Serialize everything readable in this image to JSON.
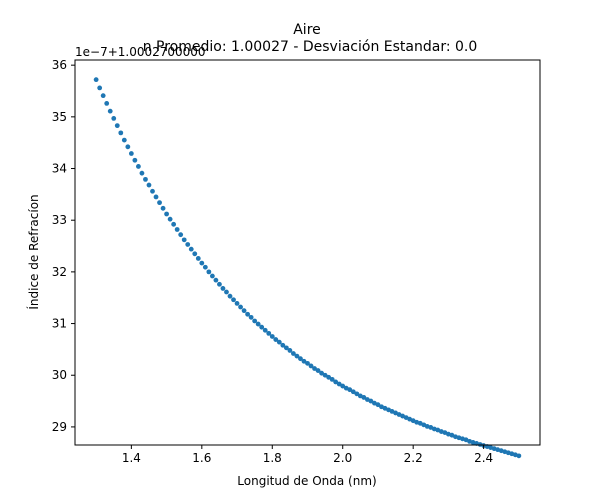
{
  "chart_data": {
    "type": "scatter",
    "title": "Aire",
    "subtitle": "n Promedio: 1.00027 - Desviación Estandar: 0.0",
    "xlabel": "Longitud de Onda (nm)",
    "ylabel": "Índice de Refracíon",
    "offset_label": "1e−7+1.0002700000",
    "xlim": [
      1.24,
      2.56
    ],
    "ylim": [
      28.65,
      36.1
    ],
    "xticks": [
      1.4,
      1.6,
      1.8,
      2.0,
      2.2,
      2.4
    ],
    "xtick_labels": [
      "1.4",
      "1.6",
      "1.8",
      "2.0",
      "2.2",
      "2.4"
    ],
    "yticks": [
      29,
      30,
      31,
      32,
      33,
      34,
      35,
      36
    ],
    "ytick_labels": [
      "29",
      "30",
      "31",
      "32",
      "33",
      "34",
      "35",
      "36"
    ],
    "grid": false,
    "marker_color": "#1f77b4",
    "series": [
      {
        "x": [
          1.3,
          1.31,
          1.32,
          1.33,
          1.34,
          1.35,
          1.36,
          1.37,
          1.38,
          1.39,
          1.4,
          1.41,
          1.42,
          1.43,
          1.44,
          1.45,
          1.46,
          1.47,
          1.48,
          1.49,
          1.5,
          1.51,
          1.52,
          1.53,
          1.54,
          1.55,
          1.56,
          1.57,
          1.58,
          1.59,
          1.6,
          1.61,
          1.62,
          1.63,
          1.64,
          1.65,
          1.66,
          1.67,
          1.68,
          1.69,
          1.7,
          1.71,
          1.72,
          1.73,
          1.74,
          1.75,
          1.76,
          1.77,
          1.78,
          1.79,
          1.8,
          1.81,
          1.82,
          1.83,
          1.84,
          1.85,
          1.86,
          1.87,
          1.88,
          1.89,
          1.9,
          1.91,
          1.92,
          1.93,
          1.94,
          1.95,
          1.96,
          1.97,
          1.98,
          1.99,
          2.0,
          2.01,
          2.02,
          2.03,
          2.04,
          2.05,
          2.06,
          2.07,
          2.08,
          2.09,
          2.1,
          2.11,
          2.12,
          2.13,
          2.14,
          2.15,
          2.16,
          2.17,
          2.18,
          2.19,
          2.2,
          2.21,
          2.22,
          2.23,
          2.24,
          2.25,
          2.26,
          2.27,
          2.28,
          2.29,
          2.3,
          2.31,
          2.32,
          2.33,
          2.34,
          2.35,
          2.36,
          2.37,
          2.38,
          2.39,
          2.4,
          2.41,
          2.42,
          2.43,
          2.44,
          2.45,
          2.46,
          2.47,
          2.48,
          2.49,
          2.5
        ],
        "y": [
          35.72,
          35.56,
          35.41,
          35.26,
          35.11,
          34.97,
          34.83,
          34.69,
          34.55,
          34.42,
          34.29,
          34.16,
          34.04,
          33.91,
          33.79,
          33.68,
          33.56,
          33.45,
          33.34,
          33.23,
          33.12,
          33.02,
          32.92,
          32.82,
          32.72,
          32.62,
          32.53,
          32.44,
          32.35,
          32.26,
          32.17,
          32.09,
          32.0,
          31.92,
          31.84,
          31.76,
          31.68,
          31.61,
          31.53,
          31.46,
          31.39,
          31.32,
          31.25,
          31.18,
          31.12,
          31.05,
          30.99,
          30.93,
          30.87,
          30.81,
          30.75,
          30.69,
          30.64,
          30.58,
          30.53,
          30.48,
          30.42,
          30.37,
          30.32,
          30.27,
          30.23,
          30.18,
          30.13,
          30.09,
          30.04,
          30.0,
          29.96,
          29.92,
          29.87,
          29.83,
          29.79,
          29.75,
          29.72,
          29.68,
          29.64,
          29.6,
          29.57,
          29.53,
          29.5,
          29.46,
          29.43,
          29.39,
          29.36,
          29.33,
          29.3,
          29.27,
          29.24,
          29.21,
          29.18,
          29.15,
          29.12,
          29.09,
          29.07,
          29.04,
          29.01,
          28.99,
          28.96,
          28.94,
          28.91,
          28.89,
          28.86,
          28.84,
          28.81,
          28.79,
          28.77,
          28.75,
          28.72,
          28.7,
          28.68,
          28.66,
          28.64,
          28.62,
          28.6,
          28.58,
          28.56,
          28.54,
          28.52,
          28.5,
          28.48,
          28.46,
          28.44
        ]
      }
    ]
  }
}
